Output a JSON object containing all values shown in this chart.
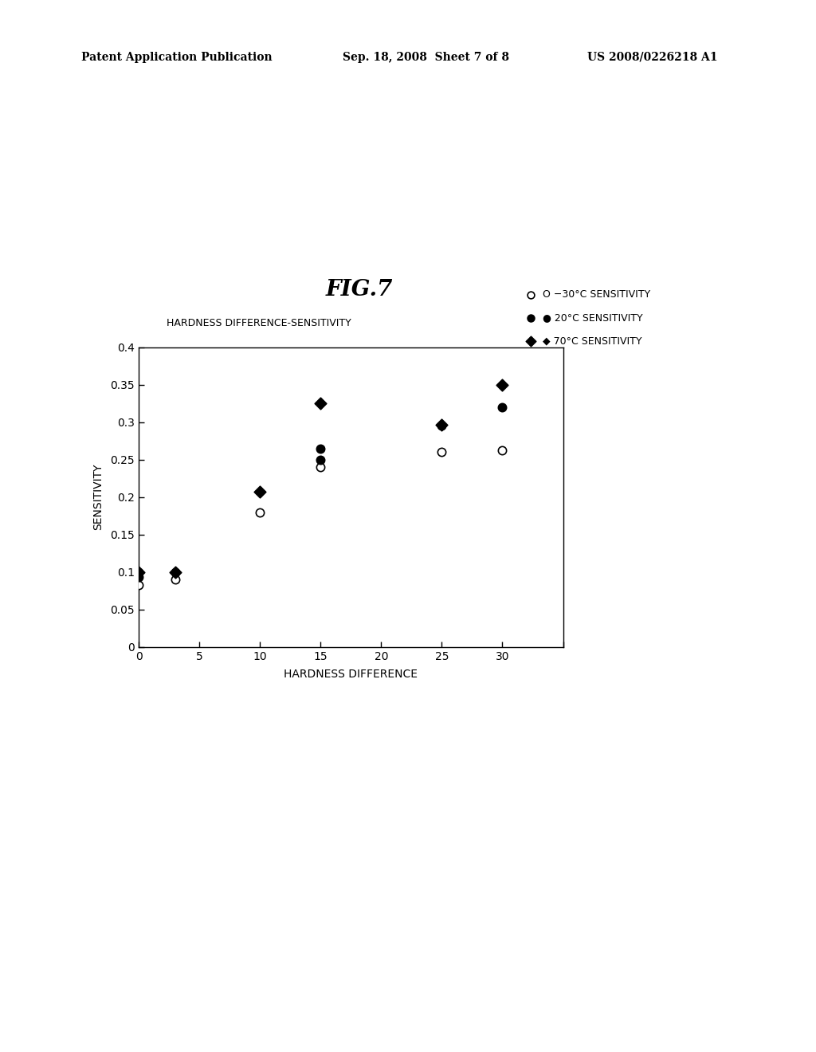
{
  "title": "FIG.7",
  "header_left": "Patent Application Publication",
  "header_mid": "Sep. 18, 2008  Sheet 7 of 8",
  "header_right": "US 2008/0226218 A1",
  "chart_label": "HARDNESS DIFFERENCE-SENSITIVITY",
  "xlabel": "HARDNESS DIFFERENCE",
  "ylabel": "SENSITIVITY",
  "xlim": [
    0,
    35
  ],
  "ylim": [
    0,
    0.4
  ],
  "xticks": [
    0,
    5,
    10,
    15,
    20,
    25,
    30
  ],
  "yticks": [
    0,
    0.05,
    0.1,
    0.15,
    0.2,
    0.25,
    0.3,
    0.35,
    0.4
  ],
  "series_neg30": {
    "label": "O −30°C SENSITIVITY",
    "marker": "o",
    "facecolor": "white",
    "edgecolor": "black",
    "x": [
      0,
      3,
      10,
      15,
      25,
      30
    ],
    "y": [
      0.083,
      0.09,
      0.18,
      0.24,
      0.26,
      0.262
    ]
  },
  "series_20": {
    "label": "● 20°C SENSITIVITY",
    "marker": "o",
    "facecolor": "black",
    "edgecolor": "black",
    "x": [
      0,
      0,
      3,
      15,
      15,
      25,
      30
    ],
    "y": [
      0.093,
      0.1,
      0.1,
      0.25,
      0.265,
      0.295,
      0.32
    ]
  },
  "series_70": {
    "label": "◆ 70°C SENSITIVITY",
    "marker": "D",
    "facecolor": "black",
    "edgecolor": "black",
    "x": [
      0,
      3,
      10,
      15,
      25,
      30
    ],
    "y": [
      0.1,
      0.1,
      0.207,
      0.325,
      0.296,
      0.35
    ]
  },
  "bg_color": "white",
  "marker_size": 55,
  "tick_fontsize": 10,
  "label_fontsize": 10,
  "legend_fontsize": 9,
  "title_fontsize": 20,
  "header_fontsize": 10
}
